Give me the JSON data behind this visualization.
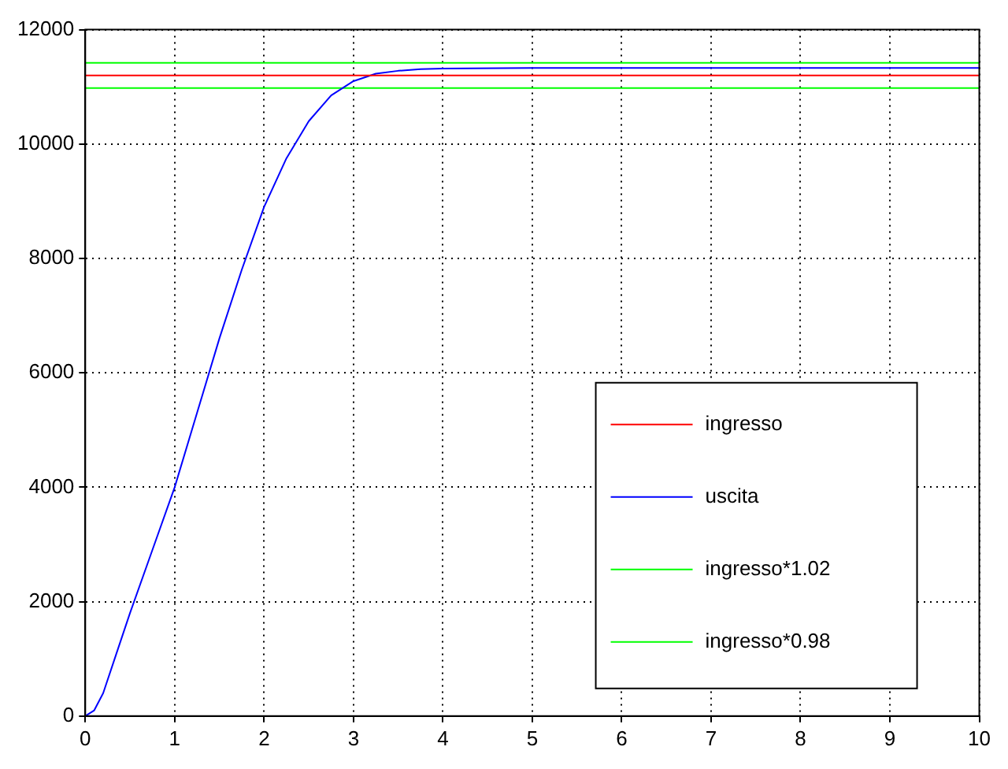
{
  "chart_data": {
    "type": "line",
    "xlim": [
      0,
      10
    ],
    "ylim": [
      0,
      12000
    ],
    "xticks": [
      0,
      1,
      2,
      3,
      4,
      5,
      6,
      7,
      8,
      9,
      10
    ],
    "yticks": [
      0,
      2000,
      4000,
      6000,
      8000,
      10000,
      12000
    ],
    "grid": true,
    "legend": "bottom right",
    "line_style": "solid",
    "marker": "none",
    "series": [
      {
        "name": "ingresso",
        "color": "#ff0000",
        "x": [
          0,
          10
        ],
        "values": [
          11200,
          11200
        ]
      },
      {
        "name": "uscita",
        "color": "#0000ff",
        "x": [
          0,
          0.1,
          0.2,
          0.35,
          0.5,
          0.75,
          1,
          1.25,
          1.5,
          1.75,
          2,
          2.25,
          2.5,
          2.75,
          3,
          3.25,
          3.5,
          3.75,
          4,
          5,
          6,
          7,
          8,
          9,
          10
        ],
        "values": [
          0,
          100,
          400,
          1100,
          1800,
          2900,
          4000,
          5300,
          6600,
          7800,
          8900,
          9750,
          10400,
          10850,
          11100,
          11230,
          11280,
          11310,
          11320,
          11330,
          11330,
          11330,
          11330,
          11330,
          11330
        ]
      },
      {
        "name": "ingresso*1.02",
        "color": "#00ff00",
        "x": [
          0,
          10
        ],
        "values": [
          11420,
          11420
        ]
      },
      {
        "name": "ingresso*0.98",
        "color": "#00ff00",
        "x": [
          0,
          10
        ],
        "values": [
          10980,
          10980
        ]
      }
    ]
  }
}
